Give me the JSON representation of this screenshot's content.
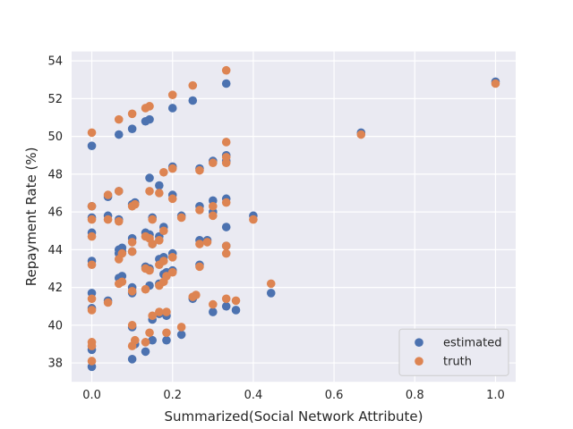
{
  "chart_data": {
    "type": "scatter",
    "xlabel": "Summarized(Social Network Attribute)",
    "ylabel": "Repayment Rate (%)",
    "xlim": [
      -0.05,
      1.05
    ],
    "ylim": [
      37,
      54.5
    ],
    "xticks": [
      0.0,
      0.2,
      0.4,
      0.6,
      0.8,
      1.0
    ],
    "xtick_labels": [
      "0.0",
      "0.2",
      "0.4",
      "0.6",
      "0.8",
      "1.0"
    ],
    "yticks": [
      38,
      40,
      42,
      44,
      46,
      48,
      50,
      52,
      54
    ],
    "ytick_labels": [
      "38",
      "40",
      "42",
      "44",
      "46",
      "48",
      "50",
      "52",
      "54"
    ],
    "grid": true,
    "legend_position": "bottom-right",
    "series": [
      {
        "name": "estimated",
        "color": "#4c72b0",
        "points": [
          [
            0.0,
            37.8
          ],
          [
            0.0,
            38.7
          ],
          [
            0.0,
            40.9
          ],
          [
            0.0,
            41.7
          ],
          [
            0.0,
            43.4
          ],
          [
            0.0,
            44.9
          ],
          [
            0.0,
            45.7
          ],
          [
            0.0,
            46.3
          ],
          [
            0.0,
            49.5
          ],
          [
            0.04,
            41.3
          ],
          [
            0.04,
            45.8
          ],
          [
            0.04,
            46.8
          ],
          [
            0.067,
            50.1
          ],
          [
            0.067,
            44.0
          ],
          [
            0.067,
            42.5
          ],
          [
            0.067,
            43.8
          ],
          [
            0.067,
            45.6
          ],
          [
            0.067,
            47.1
          ],
          [
            0.075,
            44.1
          ],
          [
            0.075,
            42.6
          ],
          [
            0.075,
            43.9
          ],
          [
            0.1,
            38.2
          ],
          [
            0.1,
            39.9
          ],
          [
            0.1,
            41.7
          ],
          [
            0.1,
            42.0
          ],
          [
            0.1,
            43.9
          ],
          [
            0.1,
            44.6
          ],
          [
            0.1,
            46.4
          ],
          [
            0.1,
            50.4
          ],
          [
            0.107,
            39.0
          ],
          [
            0.107,
            46.5
          ],
          [
            0.133,
            38.6
          ],
          [
            0.133,
            43.1
          ],
          [
            0.133,
            44.9
          ],
          [
            0.133,
            50.8
          ],
          [
            0.143,
            42.1
          ],
          [
            0.143,
            43.0
          ],
          [
            0.143,
            44.8
          ],
          [
            0.143,
            47.8
          ],
          [
            0.143,
            50.9
          ],
          [
            0.15,
            39.2
          ],
          [
            0.15,
            40.3
          ],
          [
            0.15,
            44.3
          ],
          [
            0.15,
            45.7
          ],
          [
            0.167,
            40.6
          ],
          [
            0.167,
            42.2
          ],
          [
            0.167,
            43.5
          ],
          [
            0.167,
            47.4
          ],
          [
            0.167,
            44.7
          ],
          [
            0.178,
            42.7
          ],
          [
            0.178,
            43.6
          ],
          [
            0.178,
            45.2
          ],
          [
            0.185,
            39.2
          ],
          [
            0.185,
            40.5
          ],
          [
            0.185,
            42.8
          ],
          [
            0.2,
            42.9
          ],
          [
            0.2,
            43.8
          ],
          [
            0.2,
            46.9
          ],
          [
            0.2,
            48.4
          ],
          [
            0.2,
            51.5
          ],
          [
            0.222,
            39.5
          ],
          [
            0.222,
            45.8
          ],
          [
            0.25,
            41.4
          ],
          [
            0.25,
            51.9
          ],
          [
            0.267,
            43.2
          ],
          [
            0.267,
            44.5
          ],
          [
            0.267,
            46.3
          ],
          [
            0.267,
            48.3
          ],
          [
            0.286,
            44.5
          ],
          [
            0.3,
            40.7
          ],
          [
            0.3,
            46.0
          ],
          [
            0.3,
            46.6
          ],
          [
            0.3,
            48.7
          ],
          [
            0.333,
            41.0
          ],
          [
            0.333,
            44.2
          ],
          [
            0.333,
            45.2
          ],
          [
            0.333,
            46.7
          ],
          [
            0.333,
            48.7
          ],
          [
            0.333,
            49.0
          ],
          [
            0.333,
            52.8
          ],
          [
            0.357,
            40.8
          ],
          [
            0.4,
            45.8
          ],
          [
            0.444,
            41.7
          ],
          [
            0.667,
            50.2
          ],
          [
            1.0,
            52.9
          ]
        ]
      },
      {
        "name": "truth",
        "color": "#dd8452",
        "points": [
          [
            0.0,
            38.1
          ],
          [
            0.0,
            38.9
          ],
          [
            0.0,
            39.1
          ],
          [
            0.0,
            40.8
          ],
          [
            0.0,
            41.4
          ],
          [
            0.0,
            43.2
          ],
          [
            0.0,
            44.7
          ],
          [
            0.0,
            45.6
          ],
          [
            0.0,
            46.3
          ],
          [
            0.0,
            50.2
          ],
          [
            0.04,
            41.2
          ],
          [
            0.04,
            45.6
          ],
          [
            0.04,
            46.9
          ],
          [
            0.067,
            50.9
          ],
          [
            0.067,
            42.2
          ],
          [
            0.067,
            43.5
          ],
          [
            0.067,
            45.5
          ],
          [
            0.067,
            47.1
          ],
          [
            0.075,
            42.3
          ],
          [
            0.075,
            43.8
          ],
          [
            0.1,
            38.9
          ],
          [
            0.1,
            40.0
          ],
          [
            0.1,
            41.8
          ],
          [
            0.1,
            44.4
          ],
          [
            0.1,
            43.9
          ],
          [
            0.1,
            46.3
          ],
          [
            0.1,
            51.2
          ],
          [
            0.107,
            39.2
          ],
          [
            0.107,
            46.4
          ],
          [
            0.133,
            39.1
          ],
          [
            0.133,
            41.9
          ],
          [
            0.133,
            43.0
          ],
          [
            0.133,
            44.7
          ],
          [
            0.133,
            51.5
          ],
          [
            0.143,
            39.6
          ],
          [
            0.143,
            42.9
          ],
          [
            0.143,
            44.6
          ],
          [
            0.143,
            47.1
          ],
          [
            0.143,
            51.6
          ],
          [
            0.15,
            40.5
          ],
          [
            0.15,
            44.3
          ],
          [
            0.15,
            45.6
          ],
          [
            0.167,
            40.7
          ],
          [
            0.167,
            42.1
          ],
          [
            0.167,
            43.2
          ],
          [
            0.167,
            47.0
          ],
          [
            0.167,
            44.5
          ],
          [
            0.178,
            42.3
          ],
          [
            0.178,
            43.4
          ],
          [
            0.178,
            45.0
          ],
          [
            0.178,
            48.1
          ],
          [
            0.185,
            39.6
          ],
          [
            0.185,
            40.7
          ],
          [
            0.185,
            42.6
          ],
          [
            0.2,
            42.8
          ],
          [
            0.2,
            43.6
          ],
          [
            0.2,
            46.7
          ],
          [
            0.2,
            48.3
          ],
          [
            0.2,
            52.2
          ],
          [
            0.222,
            39.9
          ],
          [
            0.222,
            45.7
          ],
          [
            0.25,
            41.5
          ],
          [
            0.25,
            52.7
          ],
          [
            0.258,
            41.6
          ],
          [
            0.267,
            43.1
          ],
          [
            0.267,
            44.3
          ],
          [
            0.267,
            46.1
          ],
          [
            0.267,
            48.2
          ],
          [
            0.286,
            44.4
          ],
          [
            0.3,
            41.1
          ],
          [
            0.3,
            45.8
          ],
          [
            0.3,
            46.3
          ],
          [
            0.3,
            48.6
          ],
          [
            0.333,
            41.4
          ],
          [
            0.333,
            43.8
          ],
          [
            0.333,
            44.2
          ],
          [
            0.333,
            46.5
          ],
          [
            0.333,
            48.6
          ],
          [
            0.333,
            48.9
          ],
          [
            0.333,
            49.7
          ],
          [
            0.333,
            53.5
          ],
          [
            0.357,
            41.3
          ],
          [
            0.4,
            45.6
          ],
          [
            0.444,
            42.2
          ],
          [
            0.667,
            50.1
          ],
          [
            1.0,
            52.8
          ]
        ]
      }
    ]
  }
}
